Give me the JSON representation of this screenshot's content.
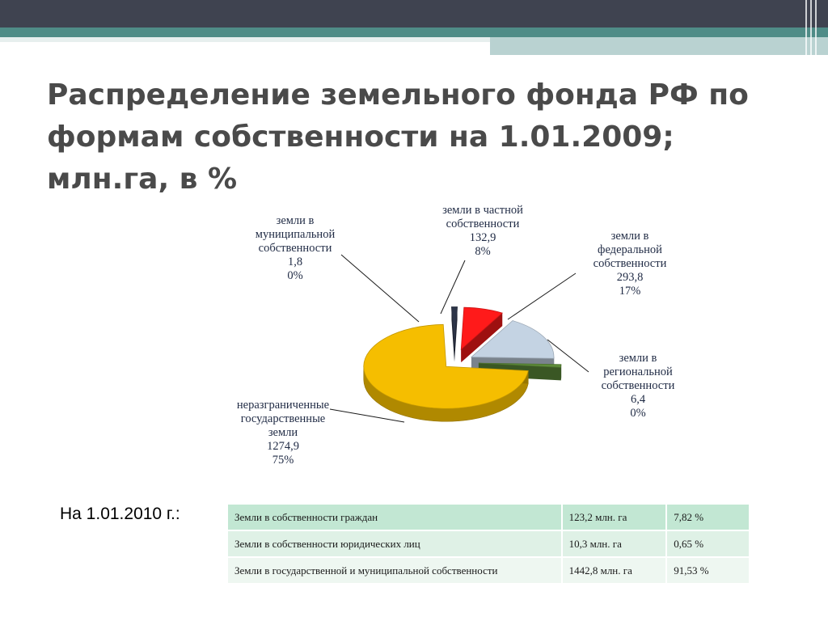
{
  "slide": {
    "title_lines": [
      "Распределение земельного фонда РФ по",
      "формам собственности на 1.01.2009;",
      "млн.га, в %"
    ]
  },
  "chart_data": {
    "type": "pie",
    "style": "3d-exploded",
    "slices": [
      {
        "label_lines": [
          "земли в частной",
          "собственности"
        ],
        "value": 132.9,
        "value_text": "132,9",
        "percent_text": "8%",
        "color": "#ff1a1a"
      },
      {
        "label_lines": [
          "земли в",
          "федеральной",
          "собственности"
        ],
        "value": 293.8,
        "value_text": "293,8",
        "percent_text": "17%",
        "color": "#c4d3e3"
      },
      {
        "label_lines": [
          "земли в",
          "региональной",
          "собственности"
        ],
        "value": 6.4,
        "value_text": "6,4",
        "percent_text": "0%",
        "color": "#5e8c3a"
      },
      {
        "label_lines": [
          "неразграниченные",
          "государственные",
          "земли"
        ],
        "value": 1274.9,
        "value_text": "1274,9",
        "percent_text": "75%",
        "color": "#f5be00"
      },
      {
        "label_lines": [
          "земли в",
          "муниципальной",
          "собственности"
        ],
        "value": 1.8,
        "value_text": "1,8",
        "percent_text": "0%",
        "color": "#2d3548"
      }
    ]
  },
  "table_section": {
    "caption": "На 1.01.2010 г.:",
    "rows": [
      {
        "name": "Земли в собственности граждан",
        "area": "123,2 млн. га",
        "share": "7,82 %"
      },
      {
        "name": "Земли в собственности юридических лиц",
        "area": "10,3 млн. га",
        "share": "0,65 %"
      },
      {
        "name": "Земли в государственной и муниципальной собственности",
        "area": "1442,8 млн. га",
        "share": "91,53 %"
      }
    ]
  }
}
